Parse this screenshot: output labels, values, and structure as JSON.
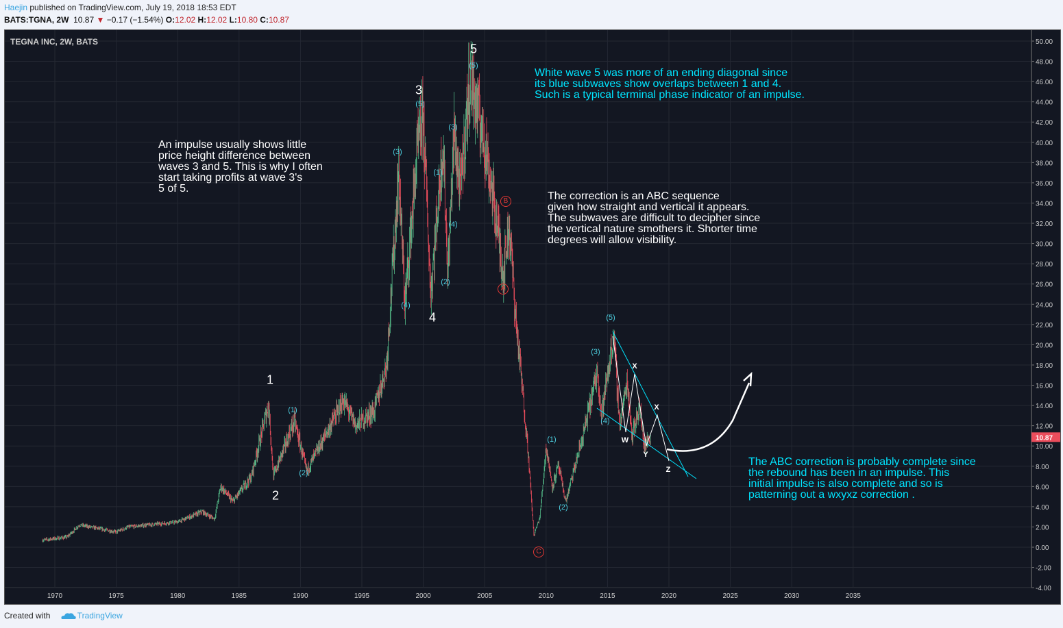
{
  "header": {
    "author": "Haejin",
    "published": "published on TradingView.com, July 19, 2018 18:53 EDT",
    "symbol": "BATS:TGNA, 2W",
    "last": "10.87",
    "change": "−0.17 (−1.54%)",
    "o_label": "O:",
    "o": "12.02",
    "h_label": "H:",
    "h": "12.02",
    "l_label": "L:",
    "l": "10.80",
    "c_label": "C:",
    "c": "10.87"
  },
  "chart_title": "TEGNA INC, 2W, BATS",
  "footer": {
    "created": "Created with",
    "brand": "TradingView"
  },
  "colors": {
    "up": "#53b987",
    "down": "#eb4d5c",
    "cyan": "#00e5ff",
    "bg": "#131722"
  },
  "waves": {
    "w1": "1",
    "w2": "2",
    "w3": "3",
    "w4": "4",
    "w5": "5",
    "s1": "(1)",
    "s2": "(2)",
    "s3": "(3)",
    "s4": "(4)",
    "s5": "(5)",
    "A": "A",
    "B": "B",
    "C": "C",
    "W": "W",
    "X": "X",
    "Y": "Y",
    "Z": "Z"
  },
  "notes": {
    "n1": "An impulse usually shows little\nprice height difference between\nwaves 3 and 5. This is why I often\nstart taking profits at wave 3's\n5 of 5.",
    "n2": "White wave 5 was more of an ending diagonal since\nits blue subwaves show overlaps between 1 and 4.\nSuch is a typical terminal phase indicator of an impulse.",
    "n3": "The correction is an ABC sequence\ngiven how straight and vertical it appears.\nThe subwaves are difficult to decipher since\nthe vertical nature smothers it. Shorter time\ndegrees will allow visibility.",
    "n4": "The ABC correction is probably complete since\nthe rebound has been in an impulse. This\ninitial impulse is also complete and so is\npatterning out a wxyxz correction ."
  },
  "chart_data": {
    "type": "candlestick",
    "title": "TEGNA INC, 2W, BATS",
    "last_price_label": "10.87",
    "ylim": [
      -4,
      50
    ],
    "xlim": [
      1966,
      2044
    ],
    "y_ticks": [
      "50.00",
      "48.00",
      "46.00",
      "44.00",
      "42.00",
      "40.00",
      "38.00",
      "36.00",
      "34.00",
      "32.00",
      "30.00",
      "28.00",
      "26.00",
      "24.00",
      "22.00",
      "20.00",
      "18.00",
      "16.00",
      "14.00",
      "12.00",
      "10.00",
      "8.00",
      "6.00",
      "4.00",
      "2.00",
      "0.00",
      "-2.00",
      "-4.00"
    ],
    "x_ticks": [
      "1970",
      "1975",
      "1980",
      "1985",
      "1990",
      "1995",
      "2000",
      "2005",
      "2010",
      "2015",
      "2020",
      "2025",
      "2030",
      "2035"
    ],
    "price_path": [
      [
        1969,
        0.7
      ],
      [
        1971,
        1.0
      ],
      [
        1972,
        2.2
      ],
      [
        1975,
        1.5
      ],
      [
        1976,
        2.0
      ],
      [
        1980,
        2.5
      ],
      [
        1982,
        3.5
      ],
      [
        1983,
        2.8
      ],
      [
        1983.5,
        6
      ],
      [
        1984.5,
        4.5
      ],
      [
        1986,
        7
      ],
      [
        1987.4,
        14.2
      ],
      [
        1987.8,
        7
      ],
      [
        1989.5,
        12.5
      ],
      [
        1990.5,
        7.5
      ],
      [
        1993.5,
        14.5
      ],
      [
        1994.5,
        12
      ],
      [
        1996,
        13.5
      ],
      [
        1997,
        18
      ],
      [
        1998,
        37
      ],
      [
        1998.5,
        24
      ],
      [
        1999.5,
        39
      ],
      [
        2000,
        42.5
      ],
      [
        2000.6,
        25
      ],
      [
        2001.6,
        40
      ],
      [
        2002,
        27
      ],
      [
        2002.5,
        41
      ],
      [
        2003,
        35
      ],
      [
        2003.8,
        46.5
      ],
      [
        2005,
        40
      ],
      [
        2006,
        32
      ],
      [
        2006.5,
        27
      ],
      [
        2007,
        32
      ],
      [
        2007.5,
        23
      ],
      [
        2008.5,
        10
      ],
      [
        2009,
        1.2
      ],
      [
        2009.5,
        3
      ],
      [
        2010,
        10
      ],
      [
        2010.5,
        6
      ],
      [
        2011,
        8
      ],
      [
        2011.6,
        4.5
      ],
      [
        2013,
        11
      ],
      [
        2014.2,
        17.5
      ],
      [
        2014.5,
        13
      ],
      [
        2015.5,
        21
      ],
      [
        2016,
        12
      ],
      [
        2016.6,
        16.5
      ],
      [
        2017,
        11
      ],
      [
        2017.6,
        14
      ],
      [
        2018,
        10
      ],
      [
        2018.5,
        10.87
      ]
    ]
  }
}
